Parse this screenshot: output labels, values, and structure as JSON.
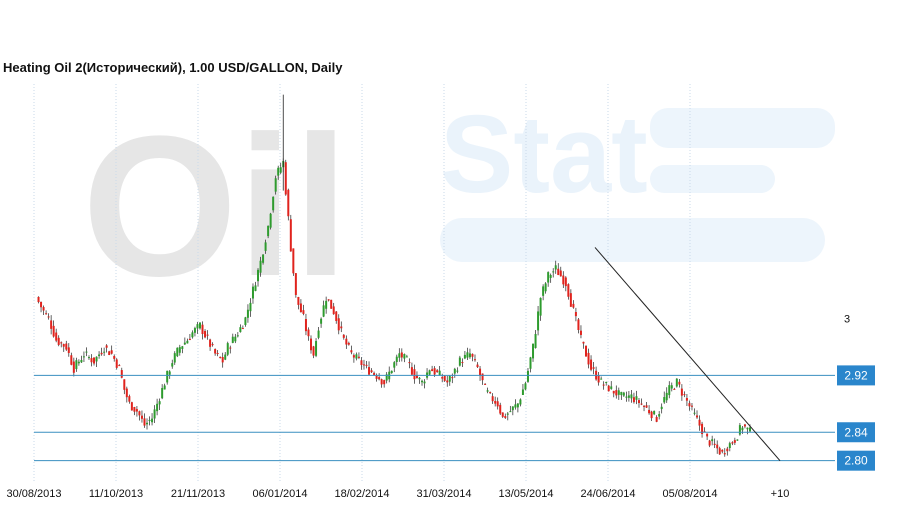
{
  "title": "Heating Oil 2(Исторический), 1.00 USD/GALLON, Daily",
  "watermark": "OilStat",
  "colors": {
    "up": "#2e9b2e",
    "down": "#e0231d",
    "level_line": "#3a8fc0",
    "level_badge": "#2a86cc",
    "grid": "#c9d9ea",
    "trendline": "#222222"
  },
  "chart_data": {
    "type": "candlestick",
    "xlabel": "",
    "ylabel": "",
    "grid": "vertical",
    "x_ticks": [
      "30/08/2013",
      "11/10/2013",
      "21/11/2013",
      "06/01/2014",
      "18/02/2014",
      "31/03/2014",
      "13/05/2014",
      "24/06/2014",
      "05/08/2014",
      "+10"
    ],
    "y_ticks": [
      "3"
    ],
    "ylim": [
      2.77,
      3.33
    ],
    "levels": [
      2.92,
      2.84,
      2.8
    ],
    "level_labels": [
      "2.92",
      "2.84",
      "2.80"
    ],
    "trendline": {
      "from": {
        "x": "24/06/2014",
        "y": 3.1
      },
      "to": {
        "x": "+10",
        "y": 2.8
      }
    },
    "series": [
      {
        "type": "close_path",
        "points": [
          [
            0,
            3.03
          ],
          [
            3,
            3.01
          ],
          [
            5,
            3.0
          ],
          [
            8,
            2.97
          ],
          [
            12,
            2.96
          ],
          [
            15,
            2.93
          ],
          [
            19,
            2.95
          ],
          [
            23,
            2.94
          ],
          [
            27,
            2.96
          ],
          [
            30,
            2.95
          ],
          [
            33,
            2.93
          ],
          [
            35,
            2.9
          ],
          [
            37,
            2.88
          ],
          [
            40,
            2.87
          ],
          [
            43,
            2.85
          ],
          [
            46,
            2.86
          ],
          [
            49,
            2.89
          ],
          [
            52,
            2.92
          ],
          [
            54,
            2.94
          ],
          [
            57,
            2.96
          ],
          [
            60,
            2.97
          ],
          [
            62,
            2.98
          ],
          [
            65,
            2.99
          ],
          [
            68,
            2.97
          ],
          [
            71,
            2.95
          ],
          [
            74,
            2.94
          ],
          [
            76,
            2.96
          ],
          [
            80,
            2.98
          ],
          [
            83,
            3.0
          ],
          [
            86,
            3.04
          ],
          [
            89,
            3.08
          ],
          [
            92,
            3.13
          ],
          [
            95,
            3.2
          ],
          [
            98,
            3.22
          ],
          [
            101,
            3.1
          ],
          [
            103,
            3.03
          ],
          [
            106,
            3.0
          ],
          [
            108,
            2.97
          ],
          [
            110,
            2.95
          ],
          [
            112,
            2.99
          ],
          [
            115,
            3.03
          ],
          [
            118,
            3.01
          ],
          [
            122,
            2.97
          ],
          [
            125,
            2.95
          ],
          [
            128,
            2.94
          ],
          [
            131,
            2.93
          ],
          [
            135,
            2.92
          ],
          [
            138,
            2.91
          ],
          [
            141,
            2.93
          ],
          [
            144,
            2.95
          ],
          [
            147,
            2.94
          ],
          [
            150,
            2.92
          ],
          [
            153,
            2.91
          ],
          [
            156,
            2.93
          ],
          [
            160,
            2.92
          ],
          [
            163,
            2.91
          ],
          [
            165,
            2.92
          ],
          [
            168,
            2.94
          ],
          [
            172,
            2.95
          ],
          [
            175,
            2.93
          ],
          [
            178,
            2.9
          ],
          [
            180,
            2.89
          ],
          [
            183,
            2.88
          ],
          [
            185,
            2.86
          ],
          [
            188,
            2.87
          ],
          [
            191,
            2.88
          ],
          [
            194,
            2.91
          ],
          [
            197,
            2.96
          ],
          [
            200,
            3.03
          ],
          [
            203,
            3.06
          ],
          [
            206,
            3.07
          ],
          [
            210,
            3.05
          ],
          [
            213,
            3.01
          ],
          [
            216,
            2.97
          ],
          [
            220,
            2.93
          ],
          [
            224,
            2.91
          ],
          [
            228,
            2.9
          ],
          [
            232,
            2.89
          ],
          [
            236,
            2.89
          ],
          [
            240,
            2.88
          ],
          [
            243,
            2.87
          ],
          [
            246,
            2.86
          ],
          [
            248,
            2.88
          ],
          [
            251,
            2.9
          ],
          [
            254,
            2.91
          ],
          [
            257,
            2.89
          ],
          [
            260,
            2.87
          ],
          [
            263,
            2.85
          ],
          [
            266,
            2.83
          ],
          [
            269,
            2.82
          ],
          [
            272,
            2.81
          ],
          [
            274,
            2.82
          ],
          [
            277,
            2.83
          ],
          [
            280,
            2.85
          ],
          [
            283,
            2.84
          ]
        ]
      }
    ]
  }
}
